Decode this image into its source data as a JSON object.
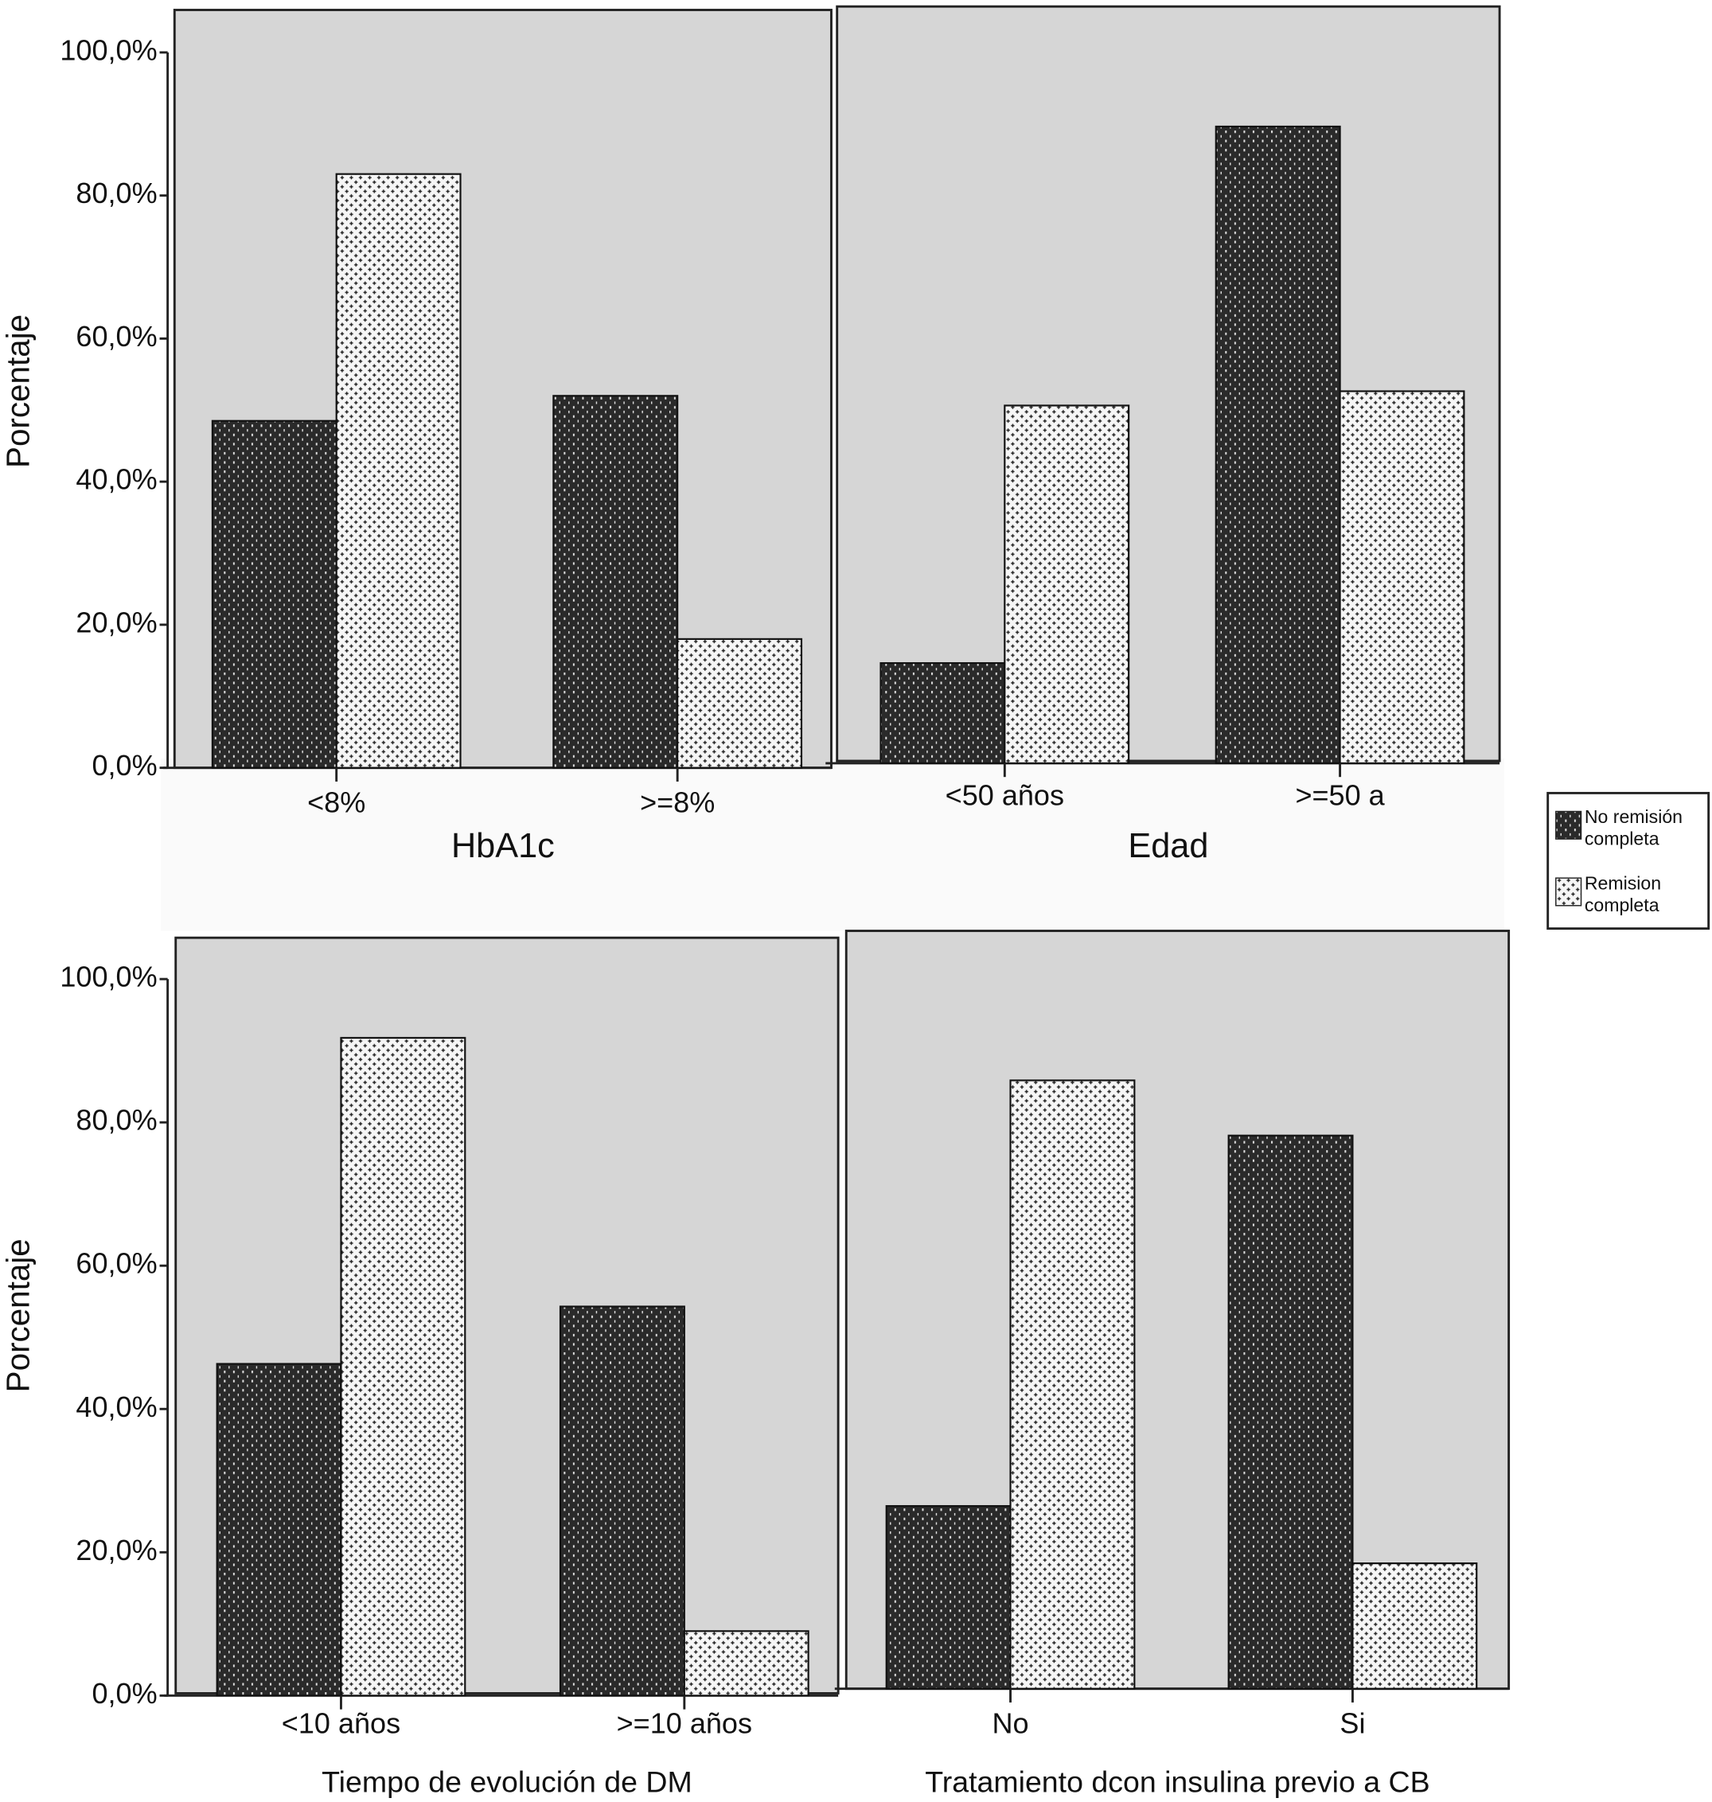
{
  "legend": [
    {
      "name": "No remisión completa",
      "color": "#2a2a2a"
    },
    {
      "name": "Remision completa",
      "color": "#f6f6f6"
    }
  ],
  "chart_data": [
    {
      "type": "bar",
      "ylabel": "Porcentaje",
      "xlabel": "HbA1c",
      "categories": [
        "<8%",
        ">=8%"
      ],
      "series": [
        {
          "values": [
            48.5,
            52
          ]
        },
        {
          "values": [
            83,
            18
          ]
        }
      ],
      "ylim": [
        0,
        100
      ],
      "yticks": [
        {
          "value": 0,
          "label": "0,0%"
        },
        {
          "value": 20,
          "label": "20,0%"
        },
        {
          "value": 40,
          "label": "40,0%"
        },
        {
          "value": 60,
          "label": "60,0%"
        },
        {
          "value": 80,
          "label": "80,0%"
        },
        {
          "value": 100,
          "label": "100,0%"
        }
      ]
    },
    {
      "type": "bar",
      "xlabel": "Edad",
      "categories": [
        "<50 años",
        ">=50 a"
      ],
      "series": [
        {
          "values": [
            14,
            89
          ]
        },
        {
          "values": [
            50,
            52
          ]
        }
      ],
      "ylim": [
        0,
        100
      ]
    },
    {
      "type": "bar",
      "ylabel": "Porcentaje",
      "xlabel": "Tiempo de evolución de DM",
      "categories": [
        "<10 años",
        ">=10 años"
      ],
      "series": [
        {
          "values": [
            46.3,
            54.3
          ]
        },
        {
          "values": [
            91.8,
            9
          ]
        }
      ],
      "ylim": [
        0,
        100
      ],
      "yticks": [
        {
          "value": 0,
          "label": "0,0%"
        },
        {
          "value": 20,
          "label": "20,0%"
        },
        {
          "value": 40,
          "label": "40,0%"
        },
        {
          "value": 60,
          "label": "60,0%"
        },
        {
          "value": 80,
          "label": "80,0%"
        },
        {
          "value": 100,
          "label": "100,0%"
        }
      ]
    },
    {
      "type": "bar",
      "xlabel": "Tratamiento dcon insulina previo a CB",
      "categories": [
        "No",
        "Si"
      ],
      "series": [
        {
          "values": [
            25.5,
            77.2
          ]
        },
        {
          "values": [
            84.9,
            17.5
          ]
        }
      ],
      "ylim": [
        0,
        100
      ]
    }
  ]
}
